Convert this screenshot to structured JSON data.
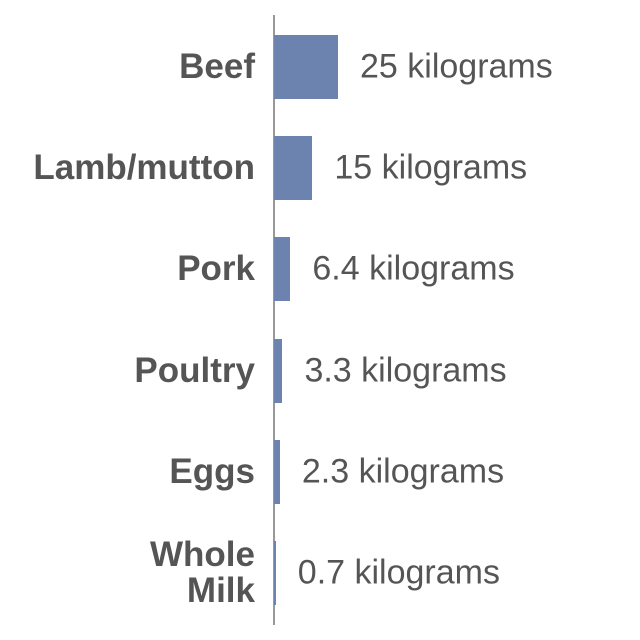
{
  "chart_data": {
    "type": "bar",
    "orientation": "horizontal",
    "categories": [
      "Beef",
      "Lamb/mutton",
      "Pork",
      "Poultry",
      "Eggs",
      "Whole Milk"
    ],
    "values": [
      25,
      15,
      6.4,
      3.3,
      2.3,
      0.7
    ],
    "value_labels": [
      "25 kilograms",
      "15 kilograms",
      "6.4 kilograms",
      "3.3 kilograms",
      "2.3 kilograms",
      "0.7 kilograms"
    ],
    "color": "#6c83b0"
  }
}
